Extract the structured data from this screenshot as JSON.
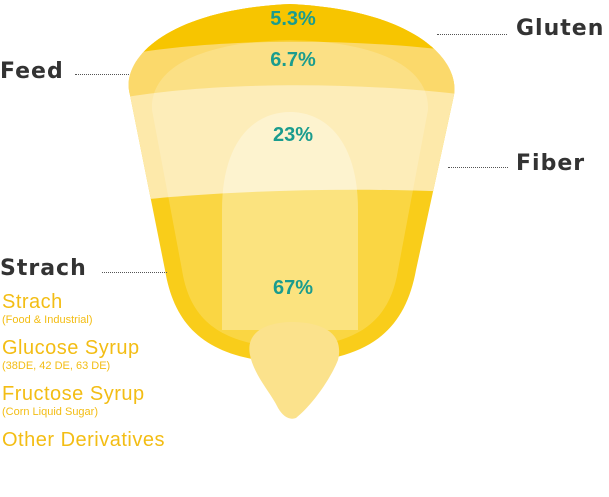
{
  "colors": {
    "gluten": "#f7c500",
    "feed": "#fbd96b",
    "fiber": "#fde9aa",
    "starch": "#f9cd1a",
    "germ": "#fdf1c4",
    "tip": "#fbe28c",
    "percent_text": "#1a9c8e",
    "label_text": "#333333",
    "derivative_text": "#f3bd14"
  },
  "chart_data": {
    "type": "funnel",
    "title": "",
    "segments": [
      {
        "name": "Gluten",
        "value": 5.3,
        "label": "5.3%",
        "callout_side": "right"
      },
      {
        "name": "Feed",
        "value": 6.7,
        "label": "6.7%",
        "callout_side": "left"
      },
      {
        "name": "Fiber",
        "value": 23,
        "label": "23%",
        "callout_side": "right"
      },
      {
        "name": "Strach",
        "value": 67,
        "label": "67%",
        "callout_side": "left"
      }
    ]
  },
  "derivatives": [
    {
      "name": "Strach",
      "note": "(Food & Industrial)"
    },
    {
      "name": "Glucose Syrup",
      "note": "(38DE, 42 DE, 63 DE)"
    },
    {
      "name": "Fructose Syrup",
      "note": "(Corn Liquid Sugar)"
    },
    {
      "name": "Other Derivatives",
      "note": ""
    }
  ]
}
